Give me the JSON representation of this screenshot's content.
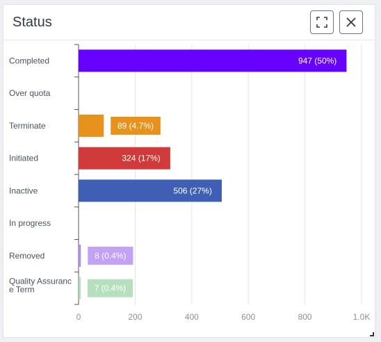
{
  "panel": {
    "title": "Status",
    "expand_icon": "expand-icon",
    "close_icon": "close-icon"
  },
  "chart_data": {
    "type": "bar",
    "orientation": "horizontal",
    "title": "",
    "xlabel": "",
    "ylabel": "",
    "categories": [
      "Completed",
      "Over quota",
      "Terminate",
      "Initiated",
      "Inactive",
      "In progress",
      "Removed",
      "Quality Assurance Term"
    ],
    "values": [
      947,
      0,
      89,
      324,
      506,
      0,
      8,
      7
    ],
    "data_labels": [
      "947 (50%)",
      "",
      "89 (4.7%)",
      "324 (17%)",
      "506 (27%)",
      "",
      "8 (0.4%)",
      "7 (0.4%)"
    ],
    "colors": [
      "#6600ff",
      "#cccccc",
      "#e8921e",
      "#d03a3a",
      "#3f5fb5",
      "#cccccc",
      "#b48cf0",
      "#a8dcb0"
    ],
    "label_bg_colors": [
      "#6600ff",
      "#cccccc",
      "#e8921e",
      "#d03a3a",
      "#3f5fb5",
      "#cccccc",
      "#c3a1f5",
      "#b6e0bd"
    ],
    "xlim": [
      0,
      1000
    ],
    "x_ticks": [
      0,
      200,
      400,
      600,
      800,
      1000
    ],
    "x_tick_labels": [
      "0",
      "200",
      "400",
      "600",
      "800",
      "1.0K"
    ],
    "grid": true
  }
}
